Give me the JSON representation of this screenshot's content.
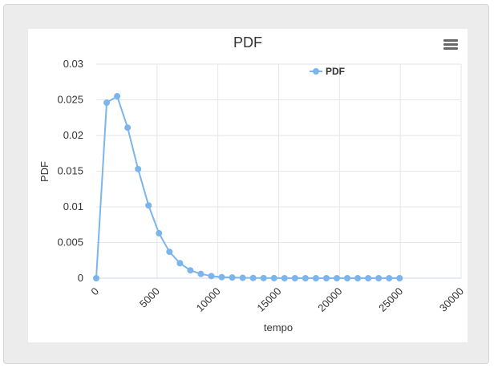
{
  "chart_data": {
    "type": "line",
    "title": "PDF",
    "xlabel": "tempo",
    "ylabel": "PDF",
    "xlim": [
      0,
      30000
    ],
    "ylim": [
      0,
      0.03
    ],
    "x_ticks": [
      "0",
      "5000",
      "10000",
      "15000",
      "20000",
      "25000",
      "30000"
    ],
    "y_ticks": [
      "0",
      "0.005",
      "0.01",
      "0.015",
      "0.02",
      "0.025",
      "0.03"
    ],
    "grid": true,
    "legend_position": "top-center",
    "series": [
      {
        "name": "PDF",
        "color": "#7cb5ec",
        "x": [
          0,
          860,
          1720,
          2580,
          3440,
          4300,
          5160,
          6020,
          6880,
          7740,
          8600,
          9460,
          10320,
          11180,
          12040,
          12900,
          13760,
          14620,
          15480,
          16340,
          17200,
          18060,
          18920,
          19780,
          20640,
          21500,
          22360,
          23220,
          24080,
          24940
        ],
        "y": [
          0,
          0.0246,
          0.0255,
          0.0211,
          0.0153,
          0.0102,
          0.0063,
          0.0037,
          0.0021,
          0.0011,
          0.0006,
          0.0003,
          0.00015,
          0.0001,
          5e-05,
          3e-05,
          2e-05,
          1e-05,
          0,
          0,
          0,
          0,
          0,
          0,
          0,
          0,
          0,
          0,
          0,
          0
        ]
      }
    ]
  },
  "menu": {
    "icon": "hamburger-icon"
  }
}
